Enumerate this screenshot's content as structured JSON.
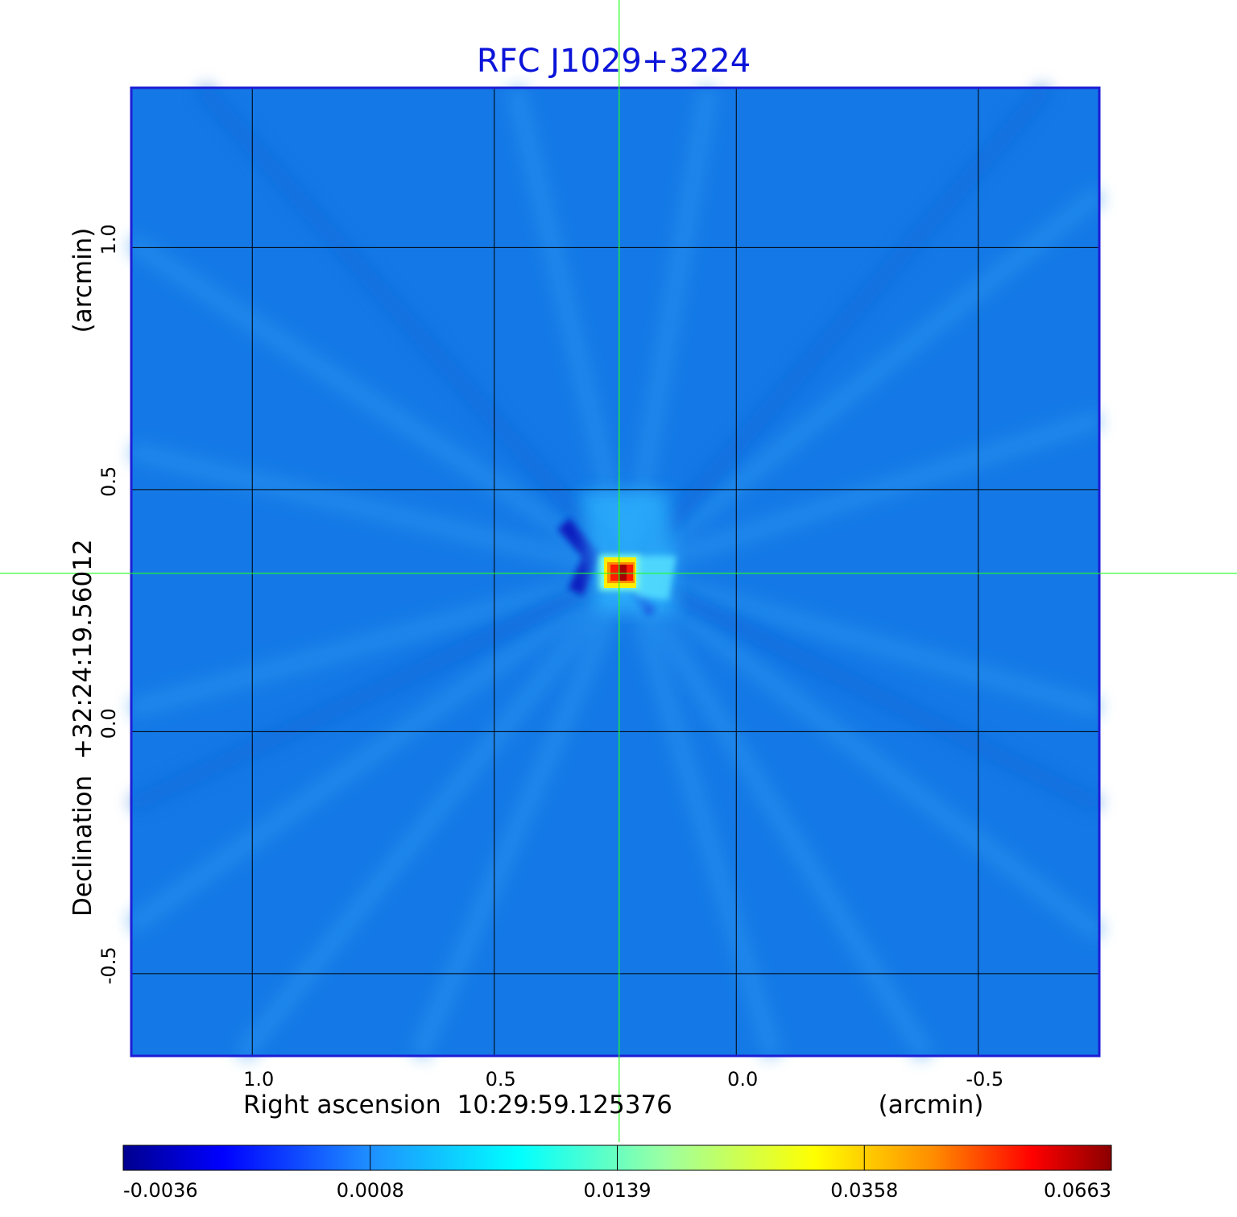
{
  "chart_data": {
    "type": "heatmap",
    "title": "RFC J1029+3224",
    "xlabel": "Right ascension  10:29:59.125376",
    "xlabel_unit": "(arcmin)",
    "ylabel": "Declination  +32:24:19.56012",
    "ylabel_unit": "(arcmin)",
    "x_ticks": [
      {
        "value": 1.0,
        "label": "1.0"
      },
      {
        "value": 0.5,
        "label": "0.5"
      },
      {
        "value": 0.0,
        "label": "0.0"
      },
      {
        "value": -0.5,
        "label": "-0.5"
      }
    ],
    "y_ticks": [
      {
        "value": 1.0,
        "label": "1.0"
      },
      {
        "value": 0.5,
        "label": "0.5"
      },
      {
        "value": 0.0,
        "label": "0.0"
      },
      {
        "value": -0.5,
        "label": "-0.5"
      }
    ],
    "xlim": [
      1.25,
      -0.75
    ],
    "ylim": [
      -0.67,
      1.33
    ],
    "grid": true,
    "crosshair": {
      "x": 0.242,
      "y": 0.327
    },
    "peak": {
      "x": 0.234,
      "y": 0.327,
      "value": 0.0663
    },
    "colorbar": {
      "ticks": [
        "-0.0036",
        "0.0008",
        "0.0139",
        "0.0358",
        "0.0663"
      ],
      "colors": [
        "#00008f",
        "#0000ff",
        "#1e90ff",
        "#00ffff",
        "#ffff00",
        "#ff0000",
        "#8b0000"
      ]
    },
    "colors": {
      "background_field": "#1479e6",
      "title": "#0b14d8",
      "frame": "#1d1dd6",
      "crosshair": "#22ff22"
    }
  }
}
